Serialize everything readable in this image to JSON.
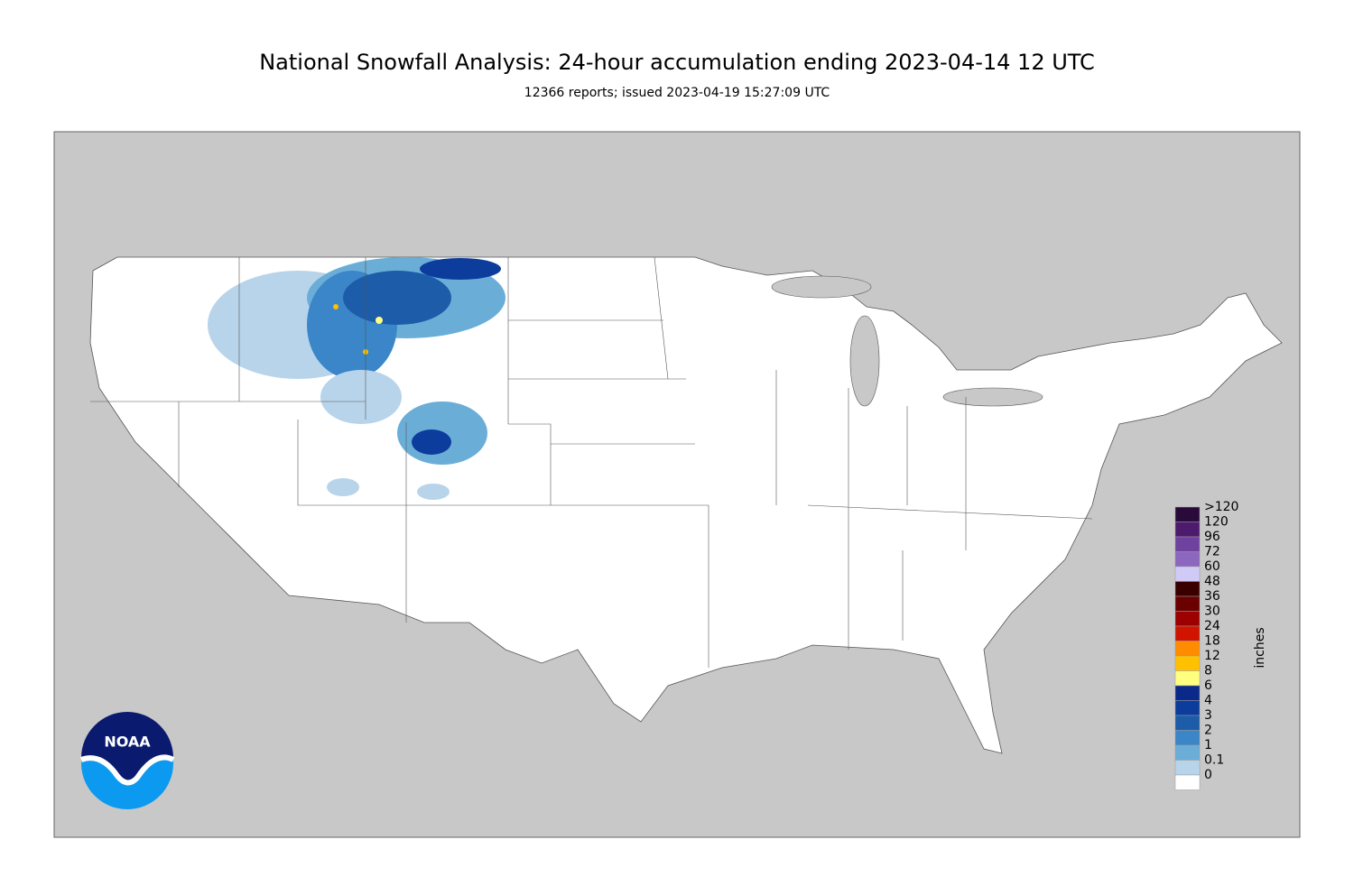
{
  "header": {
    "title": "National Snowfall Analysis: 24-hour accumulation ending 2023-04-14 12 UTC",
    "subtitle": "12366 reports; issued 2023-04-19 15:27:09 UTC"
  },
  "legend": {
    "units": "inches",
    "items": [
      {
        "label": ">120",
        "color": "#2a0a3a"
      },
      {
        "label": "120",
        "color": "#4d1a6e"
      },
      {
        "label": "96",
        "color": "#6f42a0"
      },
      {
        "label": "72",
        "color": "#8c66bf"
      },
      {
        "label": "60",
        "color": "#cfcaf6"
      },
      {
        "label": "48",
        "color": "#3a0000"
      },
      {
        "label": "36",
        "color": "#6a0000"
      },
      {
        "label": "30",
        "color": "#9c0000"
      },
      {
        "label": "24",
        "color": "#d01400"
      },
      {
        "label": "18",
        "color": "#ff8c00"
      },
      {
        "label": "12",
        "color": "#ffc000"
      },
      {
        "label": "8",
        "color": "#ffff80"
      },
      {
        "label": "6",
        "color": "#0a2a8a"
      },
      {
        "label": "4",
        "color": "#0c3c9c"
      },
      {
        "label": "3",
        "color": "#1c5ca8"
      },
      {
        "label": "2",
        "color": "#3a86c8"
      },
      {
        "label": "1",
        "color": "#6aaed8"
      },
      {
        "label": "0.1",
        "color": "#b8d4ea"
      },
      {
        "label": "0",
        "color": "#ffffff"
      }
    ]
  },
  "logo": {
    "text": "NOAA"
  }
}
